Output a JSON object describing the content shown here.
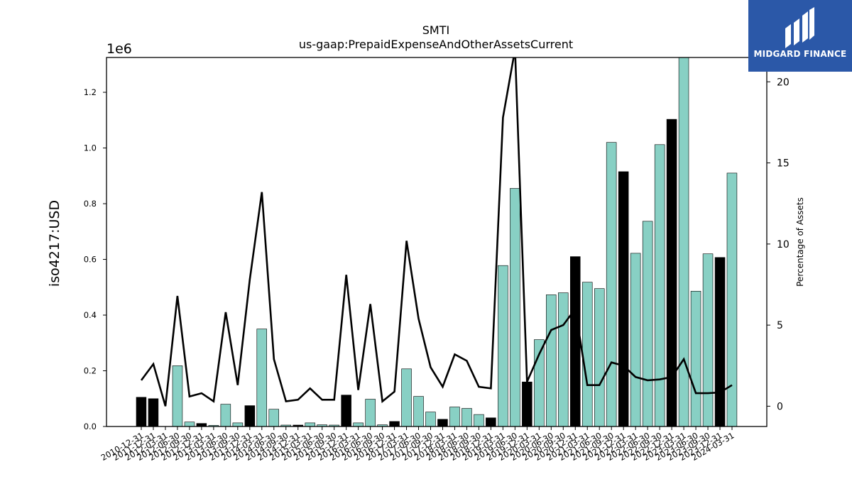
{
  "chart_data": {
    "type": "bar",
    "title": "SMTI",
    "subtitle": "us-gaap:PrepaidExpenseAndOtherAssetsCurrent",
    "ylabel": "iso4217:USD",
    "y_offset_label": "1e6",
    "y2label": "Percentage of Assets",
    "ylim": [
      0,
      1.325
    ],
    "y2lim": [
      -1.25,
      21.5
    ],
    "yticks": [
      "0.0",
      "0.2",
      "0.4",
      "0.6",
      "0.8",
      "1.0",
      "1.2"
    ],
    "y2ticks": [
      "0",
      "5",
      "10",
      "15",
      "20"
    ],
    "grid": false,
    "colors": {
      "bar_q4": "#000000",
      "bar_other": "#88d0c4",
      "line": "#000000"
    },
    "categories": [
      "2010-12-31",
      "2011-12-31",
      "2012-03-31",
      "2012-06-30",
      "2012-09-30",
      "2012-12-31",
      "2013-03-31",
      "2013-06-30",
      "2013-09-30",
      "2013-12-31",
      "2014-03-31",
      "2014-06-30",
      "2014-09-30",
      "2014-12-31",
      "2015-03-31",
      "2015-06-30",
      "2015-09-30",
      "2015-12-31",
      "2016-03-31",
      "2016-06-30",
      "2016-09-30",
      "2016-12-31",
      "2017-03-31",
      "2017-06-30",
      "2017-09-30",
      "2017-12-31",
      "2018-03-31",
      "2018-06-30",
      "2018-09-30",
      "2018-12-31",
      "2019-03-31",
      "2019-06-30",
      "2019-12-31",
      "2020-03-31",
      "2020-06-30",
      "2020-09-30",
      "2020-12-31",
      "2021-03-31",
      "2021-06-30",
      "2021-09-30",
      "2021-12-31",
      "2022-03-31",
      "2022-06-30",
      "2022-09-30",
      "2022-12-31",
      "2023-03-31",
      "2023-06-30",
      "2023-09-30",
      "2023-12-31",
      "2024-03-31"
    ],
    "series": [
      {
        "type": "bar",
        "values": [
          0.105,
          0.1,
          0.0,
          0.218,
          0.016,
          0.011,
          0.004,
          0.08,
          0.013,
          0.075,
          0.35,
          0.062,
          0.005,
          0.005,
          0.013,
          0.006,
          0.005,
          0.113,
          0.013,
          0.098,
          0.006,
          0.018,
          0.207,
          0.108,
          0.052,
          0.026,
          0.07,
          0.065,
          0.043,
          0.031,
          0.578,
          0.855,
          0.16,
          0.312,
          0.473,
          0.48,
          0.61,
          0.518,
          0.495,
          1.02,
          0.915,
          0.622,
          0.737,
          1.012,
          1.103,
          1.33,
          0.486,
          0.62,
          0.607,
          0.91
        ]
      },
      {
        "type": "line",
        "axis": "right",
        "values": [
          1.6,
          2.6,
          0.0,
          6.8,
          0.6,
          0.8,
          0.3,
          5.8,
          1.3,
          7.8,
          13.2,
          2.9,
          0.3,
          0.4,
          1.1,
          0.4,
          0.4,
          8.1,
          1.0,
          6.3,
          0.3,
          0.9,
          10.2,
          5.4,
          2.4,
          1.2,
          3.2,
          2.8,
          1.2,
          1.1,
          17.8,
          22.0,
          1.5,
          3.2,
          4.7,
          5.0,
          6.0,
          1.3,
          1.3,
          2.7,
          2.5,
          1.8,
          1.6,
          1.65,
          1.8,
          2.9,
          0.8,
          0.8,
          0.85,
          1.3
        ]
      }
    ]
  },
  "logo": {
    "brand": "MIDGARD FINANCE"
  }
}
